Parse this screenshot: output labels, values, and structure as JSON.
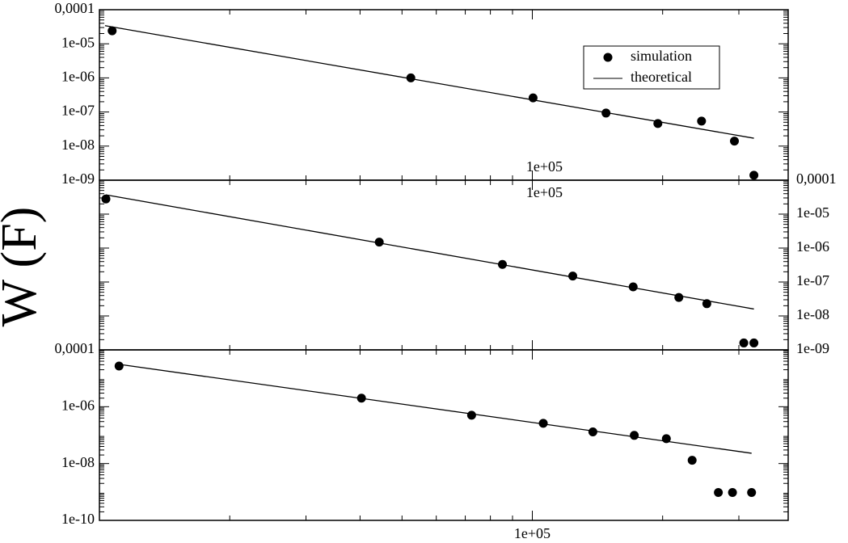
{
  "chart_data": [
    {
      "type": "scatter",
      "ylabel": "W (F)",
      "log_x": true,
      "log_y": true,
      "ylabel_side": "left",
      "legend": "upper right",
      "xlim": [
        10000,
        390000
      ],
      "xticks": [
        {
          "value": 100000,
          "label": "1e+05"
        }
      ],
      "ylim": [
        1e-09,
        0.0001
      ],
      "yticks": [
        {
          "value": 1e-09,
          "label": "1e-09"
        },
        {
          "value": 1e-08,
          "label": "1e-08"
        },
        {
          "value": 1e-07,
          "label": "1e-07"
        },
        {
          "value": 1e-06,
          "label": "1e-06"
        },
        {
          "value": 1e-05,
          "label": "1e-05"
        },
        {
          "value": 0.0001,
          "label": "0,0001"
        }
      ],
      "series": [
        {
          "name": "simulation",
          "style": "markers",
          "color": "#000000",
          "x": [
            10700,
            52400,
            100400,
            148000,
            195000,
            246000,
            293000,
            325000
          ],
          "values": [
            2.4e-05,
            1e-06,
            2.6e-07,
            9.3e-08,
            4.6e-08,
            5.4e-08,
            1.4e-08,
            1.4e-09
          ]
        },
        {
          "name": "theoretical",
          "style": "line",
          "color": "#000000",
          "x": [
            10300,
            325000
          ],
          "values": [
            3.4e-05,
            1.7e-08
          ]
        }
      ]
    },
    {
      "type": "scatter",
      "log_x": true,
      "log_y": true,
      "ylabel_side": "right",
      "xlim": [
        10000,
        390000
      ],
      "xticks": [
        {
          "value": 100000,
          "label": "1e+05"
        }
      ],
      "ylim": [
        1e-09,
        0.0001
      ],
      "yticks": [
        {
          "value": 1e-09,
          "label": "1e-09"
        },
        {
          "value": 1e-08,
          "label": "1e-08"
        },
        {
          "value": 1e-07,
          "label": "1e-07"
        },
        {
          "value": 1e-06,
          "label": "1e-06"
        },
        {
          "value": 1e-05,
          "label": "1e-05"
        },
        {
          "value": 0.0001,
          "label": "0,0001"
        }
      ],
      "series": [
        {
          "style": "markers",
          "color": "#000000",
          "x": [
            10350,
            44300,
            85300,
            124000,
            171000,
            218000,
            253000,
            308000,
            325000
          ],
          "values": [
            2.8e-05,
            1.5e-06,
            3.3e-07,
            1.5e-07,
            7.2e-08,
            3.5e-08,
            2.3e-08,
            1.6e-09,
            1.6e-09
          ]
        },
        {
          "style": "line",
          "color": "#000000",
          "x": [
            10350,
            325000
          ],
          "values": [
            3.7e-05,
            1.6e-08
          ]
        }
      ]
    },
    {
      "type": "scatter",
      "log_x": true,
      "log_y": true,
      "ylabel_side": "left",
      "xlim": [
        10000,
        390000
      ],
      "xticks": [
        {
          "value": 100000,
          "label": "1e+05"
        }
      ],
      "ylim": [
        1e-10,
        0.0001
      ],
      "yticks": [
        {
          "value": 1e-10,
          "label": "1e-10"
        },
        {
          "value": 1e-08,
          "label": "1e-08"
        },
        {
          "value": 1e-06,
          "label": "1e-06"
        },
        {
          "value": 0.0001,
          "label": "0,0001"
        }
      ],
      "series": [
        {
          "style": "markers",
          "color": "#000000",
          "x": [
            11100,
            40300,
            72400,
            106000,
            138000,
            172000,
            204000,
            234000,
            269000,
            290000,
            321000
          ],
          "values": [
            2.7e-05,
            2e-06,
            5e-07,
            2.6e-07,
            1.3e-07,
            9.8e-08,
            7.5e-08,
            1.3e-08,
            9.6e-10,
            9.6e-10,
            9.6e-10
          ]
        },
        {
          "style": "line",
          "color": "#000000",
          "x": [
            11100,
            321000
          ],
          "values": [
            3.1e-05,
            2.3e-08
          ]
        }
      ]
    }
  ]
}
